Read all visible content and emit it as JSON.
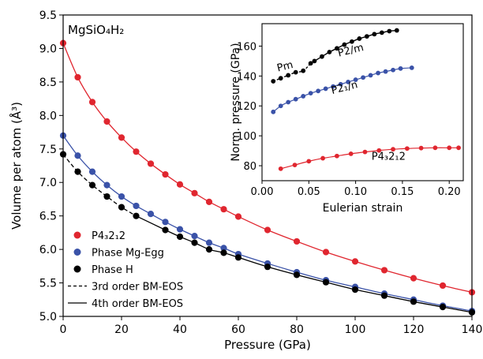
{
  "chart_data": [
    {
      "type": "scatter",
      "annotation": "MgSiO₄H₂",
      "xlabel": "Pressure (GPa)",
      "ylabel": "Volume per atom (Å³)",
      "xlim": [
        0,
        140
      ],
      "ylim": [
        5.0,
        9.5
      ],
      "xticks": [
        0,
        20,
        40,
        60,
        80,
        100,
        120,
        140
      ],
      "yticks": [
        5.0,
        5.5,
        6.0,
        6.5,
        7.0,
        7.5,
        8.0,
        8.5,
        9.0,
        9.5
      ],
      "legend_placement": "lower-left",
      "legend": [
        {
          "label": "P4₃2₁2",
          "kind": "marker",
          "color": "#e0262f"
        },
        {
          "label": "Phase Mg-Egg",
          "kind": "marker",
          "color": "#3a52a8"
        },
        {
          "label": "Phase H",
          "kind": "marker",
          "color": "#000000"
        },
        {
          "label": "3rd order BM-EOS",
          "kind": "dashed"
        },
        {
          "label": "4th order BM-EOS",
          "kind": "solid"
        }
      ],
      "series": [
        {
          "name": "P4₃2₁2",
          "color": "#e0262f",
          "points": [
            [
              0,
              9.08
            ],
            [
              5,
              8.57
            ],
            [
              10,
              8.2
            ],
            [
              15,
              7.91
            ],
            [
              20,
              7.67
            ],
            [
              25,
              7.46
            ],
            [
              30,
              7.28
            ],
            [
              35,
              7.12
            ],
            [
              40,
              6.97
            ],
            [
              45,
              6.84
            ],
            [
              50,
              6.71
            ],
            [
              55,
              6.6
            ],
            [
              60,
              6.49
            ],
            [
              70,
              6.29
            ],
            [
              80,
              6.12
            ],
            [
              90,
              5.96
            ],
            [
              100,
              5.82
            ],
            [
              110,
              5.69
            ],
            [
              120,
              5.57
            ],
            [
              130,
              5.46
            ],
            [
              140,
              5.36
            ]
          ]
        },
        {
          "name": "Phase Mg-Egg",
          "color": "#3a52a8",
          "points": [
            [
              0,
              7.7
            ],
            [
              5,
              7.4
            ],
            [
              10,
              7.16
            ],
            [
              15,
              6.96
            ],
            [
              20,
              6.79
            ],
            [
              25,
              6.65
            ],
            [
              30,
              6.53
            ],
            [
              35,
              6.41
            ],
            [
              40,
              6.3
            ],
            [
              45,
              6.2
            ],
            [
              50,
              6.1
            ],
            [
              55,
              6.02
            ],
            [
              60,
              5.93
            ],
            [
              70,
              5.79
            ],
            [
              80,
              5.66
            ],
            [
              90,
              5.54
            ],
            [
              100,
              5.44
            ],
            [
              110,
              5.34
            ],
            [
              120,
              5.25
            ],
            [
              130,
              5.16
            ],
            [
              140,
              5.08
            ]
          ]
        },
        {
          "name": "Phase H",
          "color": "#000000",
          "points": [
            [
              0,
              7.42
            ],
            [
              5,
              7.16
            ],
            [
              10,
              6.96
            ],
            [
              15,
              6.79
            ],
            [
              20,
              6.63
            ],
            [
              25,
              6.5
            ],
            [
              35,
              6.29
            ],
            [
              40,
              6.19
            ],
            [
              45,
              6.1
            ],
            [
              50,
              6.0
            ],
            [
              55,
              5.95
            ],
            [
              60,
              5.88
            ],
            [
              70,
              5.74
            ],
            [
              80,
              5.62
            ],
            [
              90,
              5.51
            ],
            [
              100,
              5.4
            ],
            [
              110,
              5.31
            ],
            [
              120,
              5.22
            ],
            [
              130,
              5.14
            ],
            [
              140,
              5.06
            ]
          ]
        }
      ]
    },
    {
      "type": "scatter",
      "xlabel": "Eulerian strain",
      "ylabel": "Norm. pressure (GPa)",
      "xlim": [
        0,
        0.215
      ],
      "ylim": [
        70,
        175
      ],
      "xticks": [
        0.0,
        0.05,
        0.1,
        0.15,
        0.2
      ],
      "xticklabels": [
        "0.00",
        "0.05",
        "0.10",
        "0.15",
        "0.20"
      ],
      "yticks": [
        80,
        100,
        120,
        140,
        160
      ],
      "series": [
        {
          "name": "Pm",
          "label_position": [
            0.017,
            143
          ],
          "color": "#000000",
          "points": [
            [
              0.012,
              136.5
            ],
            [
              0.02,
              138.5
            ],
            [
              0.028,
              140.5
            ],
            [
              0.036,
              142.5
            ],
            [
              0.044,
              143.5
            ],
            [
              0.052,
              148.5
            ]
          ]
        },
        {
          "name": "P2/m",
          "label_position": [
            0.082,
            153
          ],
          "color": "#000000",
          "points": [
            [
              0.056,
              150
            ],
            [
              0.064,
              153
            ],
            [
              0.072,
              156
            ],
            [
              0.08,
              158.5
            ],
            [
              0.088,
              161
            ],
            [
              0.096,
              163
            ],
            [
              0.104,
              165
            ],
            [
              0.112,
              166.5
            ],
            [
              0.12,
              168
            ],
            [
              0.128,
              169
            ],
            [
              0.136,
              170
            ],
            [
              0.144,
              170.5
            ]
          ]
        },
        {
          "name": "P2₁/n",
          "label_position": [
            0.075,
            128
          ],
          "color": "#3a52a8",
          "points": [
            [
              0.012,
              116
            ],
            [
              0.02,
              120
            ],
            [
              0.028,
              122.5
            ],
            [
              0.036,
              124.5
            ],
            [
              0.044,
              126.5
            ],
            [
              0.052,
              128.5
            ],
            [
              0.06,
              130
            ],
            [
              0.068,
              131.5
            ],
            [
              0.076,
              133
            ],
            [
              0.084,
              134.5
            ],
            [
              0.092,
              136
            ],
            [
              0.1,
              137.5
            ],
            [
              0.108,
              139
            ],
            [
              0.116,
              140.5
            ],
            [
              0.124,
              142
            ],
            [
              0.132,
              143
            ],
            [
              0.14,
              144
            ],
            [
              0.148,
              145
            ],
            [
              0.16,
              145.5
            ]
          ]
        },
        {
          "name": "P4₃2₁2",
          "label_position": [
            0.117,
            84
          ],
          "color": "#e0262f",
          "points": [
            [
              0.02,
              78
            ],
            [
              0.035,
              80.5
            ],
            [
              0.05,
              83
            ],
            [
              0.065,
              85
            ],
            [
              0.08,
              86.5
            ],
            [
              0.095,
              88
            ],
            [
              0.11,
              89.2
            ],
            [
              0.125,
              90.2
            ],
            [
              0.14,
              91
            ],
            [
              0.155,
              91.5
            ],
            [
              0.17,
              91.8
            ],
            [
              0.185,
              92
            ],
            [
              0.2,
              92
            ],
            [
              0.21,
              92
            ]
          ]
        }
      ]
    }
  ]
}
